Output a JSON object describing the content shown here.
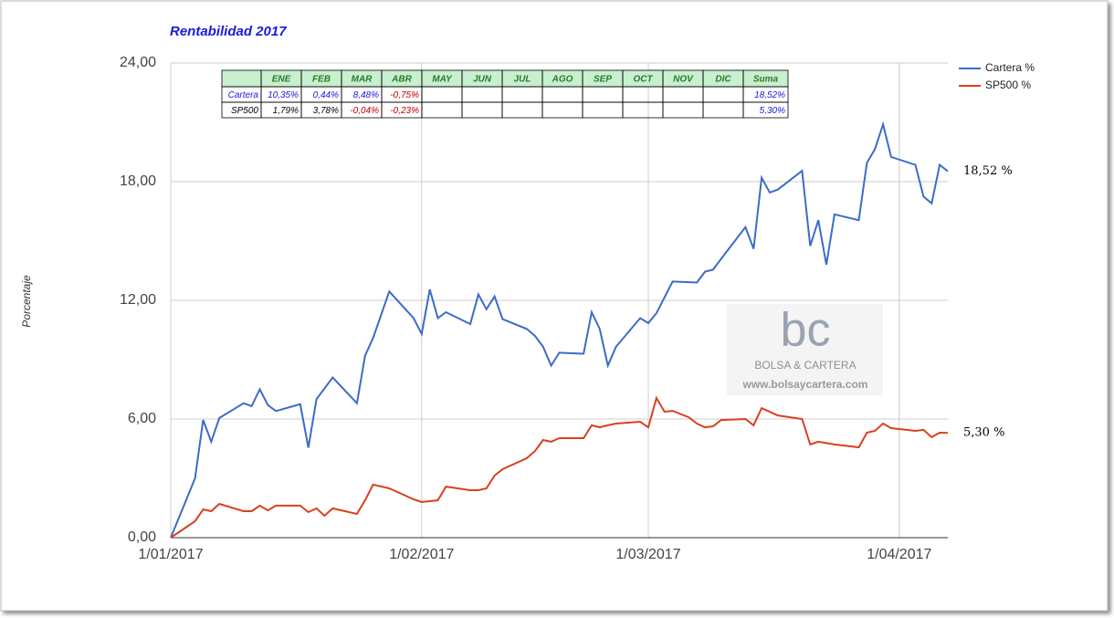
{
  "chart_data": {
    "type": "line",
    "title": "Rentabilidad 2017",
    "y_label": "Porcentaje",
    "xlim": [
      "2017-01-01",
      "2017-04-07"
    ],
    "xticks": [
      {
        "value": "2017-01-01",
        "label": "1/01/2017"
      },
      {
        "value": "2017-02-01",
        "label": "1/02/2017"
      },
      {
        "value": "2017-03-01",
        "label": "1/03/2017"
      },
      {
        "value": "2017-04-01",
        "label": "1/04/2017"
      }
    ],
    "ylim": [
      0,
      24
    ],
    "yticks": [
      {
        "value": 0,
        "label": "0,00"
      },
      {
        "value": 6,
        "label": "6,00"
      },
      {
        "value": 12,
        "label": "12,00"
      },
      {
        "value": 18,
        "label": "18,00"
      },
      {
        "value": 24,
        "label": "24,00"
      }
    ],
    "grid": true,
    "legend": "right",
    "series": [
      {
        "name": "Cartera %",
        "color": "#3c6bc8",
        "x": [
          "2017-01-01",
          "2017-01-04",
          "2017-01-05",
          "2017-01-06",
          "2017-01-07",
          "2017-01-10",
          "2017-01-11",
          "2017-01-12",
          "2017-01-13",
          "2017-01-14",
          "2017-01-17",
          "2017-01-18",
          "2017-01-19",
          "2017-01-21",
          "2017-01-24",
          "2017-01-25",
          "2017-01-26",
          "2017-01-28",
          "2017-01-31",
          "2017-02-01",
          "2017-02-02",
          "2017-02-03",
          "2017-02-04",
          "2017-02-07",
          "2017-02-08",
          "2017-02-09",
          "2017-02-10",
          "2017-02-11",
          "2017-02-14",
          "2017-02-15",
          "2017-02-16",
          "2017-02-17",
          "2017-02-18",
          "2017-02-21",
          "2017-02-22",
          "2017-02-23",
          "2017-02-24",
          "2017-02-25",
          "2017-02-28",
          "2017-03-01",
          "2017-03-02",
          "2017-03-04",
          "2017-03-07",
          "2017-03-08",
          "2017-03-09",
          "2017-03-10",
          "2017-03-13",
          "2017-03-14",
          "2017-03-15",
          "2017-03-16",
          "2017-03-17",
          "2017-03-20",
          "2017-03-21",
          "2017-03-22",
          "2017-03-23",
          "2017-03-24",
          "2017-03-27",
          "2017-03-28",
          "2017-03-29",
          "2017-03-30",
          "2017-03-31",
          "2017-04-03",
          "2017-04-04",
          "2017-04-05",
          "2017-04-06",
          "2017-04-07"
        ],
        "values": [
          0,
          3.0,
          5.95,
          4.85,
          6.05,
          6.8,
          6.65,
          7.5,
          6.7,
          6.4,
          6.75,
          4.55,
          7.0,
          8.1,
          6.8,
          9.2,
          10.1,
          12.45,
          11.1,
          10.3,
          12.55,
          11.1,
          11.4,
          10.8,
          12.3,
          11.55,
          12.2,
          11.05,
          10.55,
          10.2,
          9.65,
          8.7,
          9.35,
          9.3,
          11.4,
          10.55,
          8.7,
          9.65,
          11.1,
          10.85,
          11.35,
          12.95,
          12.9,
          13.45,
          13.55,
          14.1,
          15.7,
          14.6,
          18.2,
          17.45,
          17.6,
          18.55,
          14.75,
          16.05,
          13.8,
          16.35,
          16.05,
          18.95,
          19.65,
          20.9,
          19.25,
          18.85,
          17.25,
          16.9,
          18.85,
          18.52
        ]
      },
      {
        "name": "SP500 %",
        "color": "#d9401e",
        "x": [
          "2017-01-01",
          "2017-01-04",
          "2017-01-05",
          "2017-01-06",
          "2017-01-07",
          "2017-01-10",
          "2017-01-11",
          "2017-01-12",
          "2017-01-13",
          "2017-01-14",
          "2017-01-17",
          "2017-01-18",
          "2017-01-19",
          "2017-01-20",
          "2017-01-21",
          "2017-01-24",
          "2017-01-25",
          "2017-01-26",
          "2017-01-28",
          "2017-01-31",
          "2017-02-01",
          "2017-02-03",
          "2017-02-04",
          "2017-02-07",
          "2017-02-08",
          "2017-02-09",
          "2017-02-10",
          "2017-02-11",
          "2017-02-14",
          "2017-02-15",
          "2017-02-16",
          "2017-02-17",
          "2017-02-18",
          "2017-02-21",
          "2017-02-22",
          "2017-02-23",
          "2017-02-24",
          "2017-02-25",
          "2017-02-28",
          "2017-03-01",
          "2017-03-02",
          "2017-03-03",
          "2017-03-04",
          "2017-03-06",
          "2017-03-07",
          "2017-03-08",
          "2017-03-09",
          "2017-03-10",
          "2017-03-13",
          "2017-03-14",
          "2017-03-15",
          "2017-03-17",
          "2017-03-20",
          "2017-03-21",
          "2017-03-22",
          "2017-03-24",
          "2017-03-27",
          "2017-03-28",
          "2017-03-29",
          "2017-03-30",
          "2017-03-31",
          "2017-04-03",
          "2017-04-04",
          "2017-04-05",
          "2017-04-06",
          "2017-04-07"
        ],
        "values": [
          0,
          0.83,
          1.43,
          1.34,
          1.71,
          1.34,
          1.34,
          1.62,
          1.38,
          1.62,
          1.62,
          1.29,
          1.48,
          1.11,
          1.48,
          1.2,
          1.89,
          2.68,
          2.49,
          1.94,
          1.8,
          1.89,
          2.58,
          2.4,
          2.4,
          2.49,
          3.14,
          3.46,
          4.02,
          4.38,
          4.94,
          4.85,
          5.03,
          5.03,
          5.68,
          5.58,
          5.68,
          5.77,
          5.86,
          5.58,
          7.06,
          6.37,
          6.41,
          6.09,
          5.77,
          5.58,
          5.63,
          5.95,
          6.0,
          5.68,
          6.55,
          6.18,
          6.0,
          4.71,
          4.85,
          4.71,
          4.57,
          5.31,
          5.4,
          5.77,
          5.54,
          5.4,
          5.45,
          5.08,
          5.31,
          5.3
        ]
      }
    ],
    "end_labels": [
      "18,52 %",
      "5,30 %"
    ],
    "table": {
      "header": [
        "ENE",
        "FEB",
        "MAR",
        "ABR",
        "MAY",
        "JUN",
        "JUL",
        "AGO",
        "SEP",
        "OCT",
        "NOV",
        "DIC"
      ],
      "total_header": "Suma",
      "rows": [
        {
          "name": "Cartera",
          "cells": [
            "10,35%",
            "0,44%",
            "8,48%",
            "-0,75%"
          ],
          "total": "18,52%"
        },
        {
          "name": "SP500",
          "cells": [
            "1,79%",
            "3,78%",
            "-0,04%",
            "-0,23%"
          ],
          "total": "5,30%"
        }
      ]
    },
    "watermark": {
      "logo": "bc",
      "name": "BOLSA & CARTERA",
      "url": "www.bolsaycartera.com"
    }
  }
}
